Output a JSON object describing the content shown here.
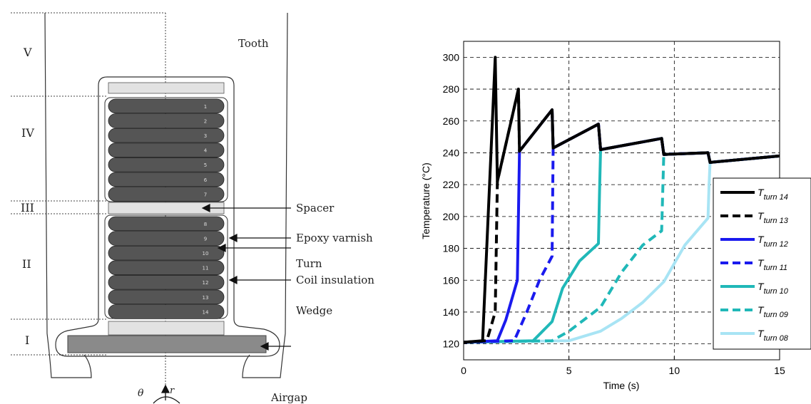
{
  "diagram": {
    "region_labels": [
      "V",
      "IV",
      "III",
      "II",
      "I"
    ],
    "labels": {
      "tooth": "Tooth",
      "spacer": "Spacer",
      "epoxy": "Epoxy varnish",
      "turn": "Turn",
      "coil_insulation": "Coil insulation",
      "wedge": "Wedge",
      "airgap": "Airgap",
      "r_axis": "r",
      "theta_axis": "θ"
    },
    "upper_turns": [
      "1",
      "2",
      "3",
      "4",
      "5",
      "6",
      "7"
    ],
    "lower_turns": [
      "8",
      "9",
      "10",
      "11",
      "12",
      "13",
      "14"
    ]
  },
  "chart_data": {
    "type": "line",
    "xlabel": "Time (s)",
    "ylabel": "Temperature (°C)",
    "xlim": [
      0,
      15
    ],
    "ylim": [
      110,
      310
    ],
    "xticks": [
      "0",
      "5",
      "10",
      "15"
    ],
    "yticks": [
      "120",
      "140",
      "160",
      "180",
      "200",
      "220",
      "240",
      "260",
      "280",
      "300"
    ],
    "grid": true,
    "legend_position": "right",
    "series": [
      {
        "name": "turn 14",
        "legend_sub": "turn 14",
        "color": "#000000",
        "dash": false,
        "x": [
          0,
          0.9,
          1.5,
          1.6,
          2.6,
          2.65,
          4.2,
          4.25,
          6.4,
          6.5,
          9.4,
          9.5,
          11.6,
          11.7,
          15
        ],
        "y": [
          121,
          122,
          300,
          222,
          280,
          241,
          267,
          243,
          258,
          242,
          249,
          239,
          240,
          234,
          238
        ]
      },
      {
        "name": "turn 13",
        "legend_sub": "turn 13",
        "color": "#000000",
        "dash": true,
        "x": [
          0,
          1.1,
          1.5,
          1.6,
          2.6,
          2.65,
          4.2,
          4.25,
          6.4,
          6.5,
          9.4,
          9.5,
          11.6,
          11.7,
          15
        ],
        "y": [
          121,
          122,
          140,
          222,
          280,
          241,
          267,
          243,
          258,
          242,
          249,
          239,
          240,
          234,
          238
        ]
      },
      {
        "name": "turn 12",
        "legend_sub": "turn 12",
        "color": "#1a1aee",
        "dash": false,
        "x": [
          0,
          1.6,
          2.0,
          2.55,
          2.6,
          2.65,
          4.2,
          4.25,
          6.4,
          6.5,
          9.4,
          9.5,
          11.6,
          11.7,
          15
        ],
        "y": [
          121,
          122,
          135,
          160,
          200,
          241,
          267,
          243,
          258,
          242,
          249,
          239,
          240,
          234,
          238
        ]
      },
      {
        "name": "turn 11",
        "legend_sub": "turn 11",
        "color": "#1a1aee",
        "dash": true,
        "x": [
          0,
          2.4,
          3.0,
          3.6,
          4.2,
          4.25,
          6.4,
          6.5,
          9.4,
          9.5,
          11.6,
          11.7,
          15
        ],
        "y": [
          121,
          122,
          140,
          160,
          175,
          243,
          258,
          242,
          249,
          239,
          240,
          234,
          238
        ]
      },
      {
        "name": "turn 10",
        "legend_sub": "turn 10",
        "color": "#20b8b8",
        "dash": false,
        "x": [
          0,
          3.3,
          4.2,
          4.7,
          5.5,
          6.4,
          6.45,
          6.5,
          9.4,
          9.5,
          11.6,
          11.7,
          15
        ],
        "y": [
          121,
          122,
          134,
          155,
          172,
          183,
          215,
          242,
          249,
          239,
          240,
          234,
          238
        ]
      },
      {
        "name": "turn 09",
        "legend_sub": "turn 09",
        "color": "#20b8b8",
        "dash": true,
        "x": [
          0,
          4.2,
          5.0,
          6.5,
          7.5,
          8.5,
          9.4,
          9.5,
          11.6,
          11.7,
          15
        ],
        "y": [
          121,
          122,
          128,
          143,
          165,
          182,
          191,
          239,
          240,
          234,
          238
        ]
      },
      {
        "name": "turn 08",
        "legend_sub": "turn 08",
        "color": "#a8e4f4",
        "dash": false,
        "x": [
          0,
          5.0,
          6.5,
          7.5,
          8.5,
          9.5,
          10.5,
          11.6,
          11.65,
          11.7,
          15
        ],
        "y": [
          121,
          122,
          128,
          136,
          146,
          159,
          182,
          199,
          220,
          234,
          238
        ]
      }
    ]
  }
}
